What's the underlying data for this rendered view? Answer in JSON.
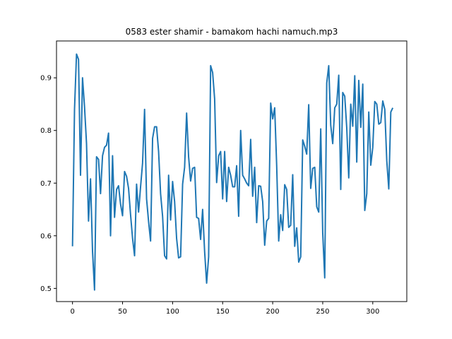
{
  "chart_data": {
    "type": "line",
    "title": "0583 ester shamir - bamakom hachi namuch.mp3",
    "xlabel": "",
    "ylabel": "",
    "xlim": [
      -16,
      334
    ],
    "ylim": [
      0.475,
      0.97
    ],
    "xticks": [
      0,
      50,
      100,
      150,
      200,
      250,
      300
    ],
    "yticks": [
      0.5,
      0.6,
      0.7,
      0.8,
      0.9
    ],
    "grid": false,
    "line_color": "#1f77b4",
    "x_start": 0,
    "x_step": 2,
    "values": [
      0.58,
      0.84,
      0.945,
      0.935,
      0.715,
      0.9,
      0.845,
      0.775,
      0.628,
      0.708,
      0.57,
      0.497,
      0.75,
      0.745,
      0.68,
      0.752,
      0.768,
      0.772,
      0.795,
      0.6,
      0.752,
      0.635,
      0.688,
      0.695,
      0.66,
      0.638,
      0.722,
      0.713,
      0.69,
      0.64,
      0.595,
      0.562,
      0.698,
      0.645,
      0.693,
      0.738,
      0.84,
      0.67,
      0.627,
      0.59,
      0.785,
      0.807,
      0.807,
      0.76,
      0.68,
      0.637,
      0.562,
      0.556,
      0.715,
      0.63,
      0.703,
      0.665,
      0.595,
      0.558,
      0.56,
      0.698,
      0.73,
      0.833,
      0.75,
      0.704,
      0.728,
      0.73,
      0.635,
      0.633,
      0.593,
      0.65,
      0.57,
      0.51,
      0.56,
      0.923,
      0.91,
      0.86,
      0.701,
      0.752,
      0.76,
      0.67,
      0.76,
      0.665,
      0.73,
      0.715,
      0.693,
      0.693,
      0.733,
      0.637,
      0.8,
      0.715,
      0.708,
      0.7,
      0.695,
      0.783,
      0.675,
      0.73,
      0.625,
      0.695,
      0.694,
      0.665,
      0.582,
      0.628,
      0.633,
      0.852,
      0.822,
      0.843,
      0.733,
      0.59,
      0.64,
      0.61,
      0.697,
      0.688,
      0.616,
      0.62,
      0.716,
      0.58,
      0.615,
      0.55,
      0.56,
      0.782,
      0.77,
      0.755,
      0.849,
      0.69,
      0.728,
      0.73,
      0.655,
      0.645,
      0.803,
      0.605,
      0.52,
      0.89,
      0.923,
      0.81,
      0.775,
      0.843,
      0.85,
      0.905,
      0.688,
      0.872,
      0.865,
      0.805,
      0.71,
      0.85,
      0.808,
      0.904,
      0.74,
      0.895,
      0.806,
      0.888,
      0.648,
      0.68,
      0.835,
      0.734,
      0.768,
      0.855,
      0.85,
      0.812,
      0.815,
      0.856,
      0.84,
      0.742,
      0.689,
      0.835,
      0.843
    ]
  }
}
